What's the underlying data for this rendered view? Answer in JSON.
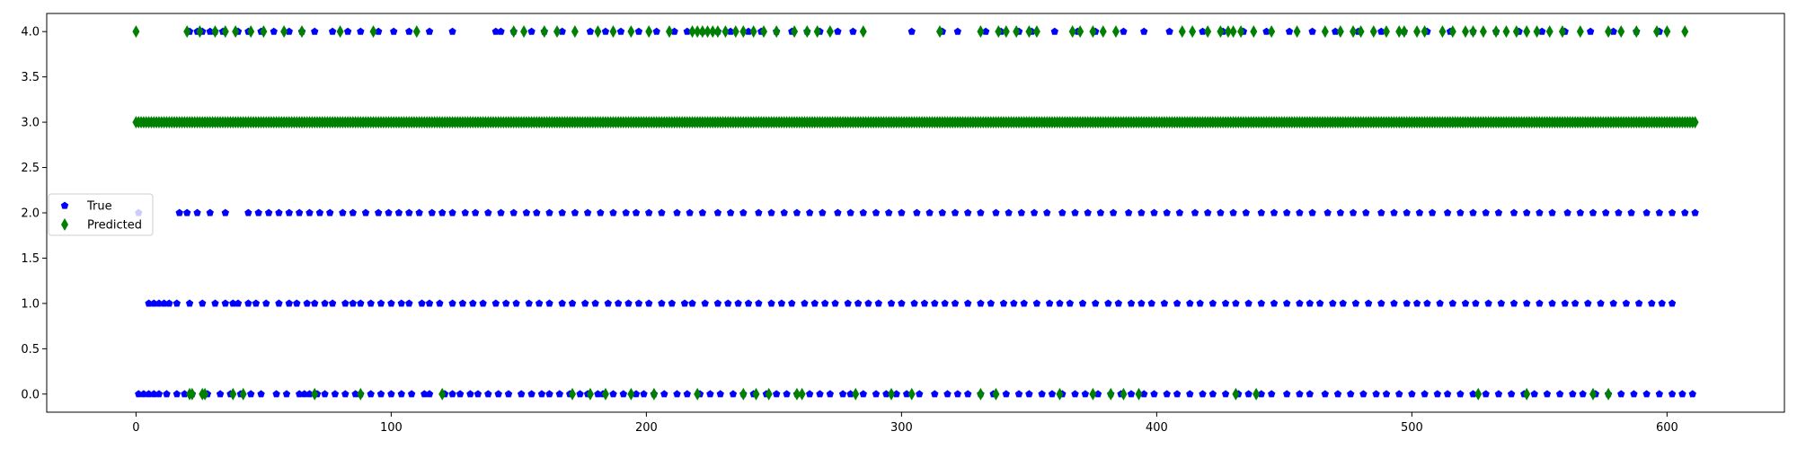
{
  "chart_data": {
    "type": "scatter",
    "xlim": [
      -35,
      646
    ],
    "ylim": [
      -0.2,
      4.2
    ],
    "xticks": [
      0,
      100,
      200,
      300,
      400,
      500,
      600
    ],
    "yticks": [
      0.0,
      0.5,
      1.0,
      1.5,
      2.0,
      2.5,
      3.0,
      3.5,
      4.0
    ],
    "xtick_labels": [
      "0",
      "100",
      "200",
      "300",
      "400",
      "500",
      "600"
    ],
    "ytick_labels": [
      "0.0",
      "0.5",
      "1.0",
      "1.5",
      "2.0",
      "2.5",
      "3.0",
      "3.5",
      "4.0"
    ],
    "grid": false,
    "legend": {
      "placement": "center-left"
    },
    "series": [
      {
        "name": "True",
        "color": "#0000ff",
        "marker": "pentagon",
        "points": {
          "0": [
            1,
            3,
            5,
            7,
            9,
            12,
            16,
            19,
            22,
            28,
            33,
            37,
            41,
            45,
            49,
            55,
            59,
            64,
            66,
            68,
            71,
            74,
            78,
            82,
            86,
            88,
            92,
            96,
            100,
            104,
            108,
            113,
            115,
            121,
            124,
            127,
            131,
            134,
            138,
            142,
            146,
            151,
            155,
            159,
            162,
            166,
            170,
            174,
            177,
            181,
            183,
            187,
            191,
            196,
            199,
            203,
            207,
            212,
            216,
            221,
            225,
            229,
            234,
            238,
            242,
            247,
            251,
            255,
            259,
            264,
            268,
            272,
            277,
            280,
            285,
            290,
            294,
            298,
            302,
            307,
            313,
            318,
            322,
            326,
            331,
            336,
            341,
            346,
            350,
            355,
            359,
            363,
            368,
            372,
            377,
            382,
            386,
            390,
            395,
            399,
            404,
            408,
            413,
            418,
            422,
            427,
            432,
            436,
            441,
            445,
            451,
            456,
            460,
            466,
            471,
            476,
            481,
            486,
            490,
            495,
            500,
            505,
            510,
            514,
            519,
            524,
            529,
            534,
            539,
            544,
            548,
            553,
            558,
            563,
            567,
            572,
            577,
            582,
            587,
            592,
            597,
            602,
            606,
            610
          ],
          "1": [
            5,
            7,
            9,
            11,
            13,
            16,
            21,
            26,
            31,
            35,
            38,
            40,
            44,
            47,
            51,
            56,
            60,
            63,
            67,
            70,
            74,
            77,
            82,
            85,
            88,
            92,
            96,
            100,
            104,
            107,
            112,
            115,
            119,
            124,
            128,
            132,
            136,
            141,
            145,
            149,
            154,
            158,
            162,
            167,
            171,
            176,
            180,
            185,
            189,
            193,
            197,
            201,
            206,
            210,
            215,
            218,
            223,
            228,
            232,
            236,
            240,
            244,
            249,
            253,
            257,
            262,
            266,
            270,
            274,
            279,
            283,
            287,
            291,
            296,
            300,
            305,
            309,
            313,
            317,
            321,
            326,
            331,
            335,
            340,
            344,
            348,
            353,
            358,
            362,
            366,
            371,
            376,
            381,
            385,
            390,
            394,
            398,
            403,
            408,
            413,
            417,
            422,
            427,
            431,
            436,
            441,
            446,
            451,
            456,
            460,
            464,
            469,
            473,
            478,
            483,
            488,
            493,
            498,
            502,
            506,
            511,
            516,
            521,
            525,
            530,
            535,
            540,
            545,
            550,
            555,
            560,
            564,
            569,
            574,
            579,
            584,
            589,
            594,
            598,
            602
          ],
          "2": [
            1,
            17,
            20,
            24,
            29,
            35,
            44,
            48,
            52,
            56,
            60,
            64,
            68,
            72,
            76,
            81,
            85,
            90,
            95,
            99,
            103,
            107,
            111,
            116,
            120,
            124,
            129,
            133,
            138,
            143,
            148,
            153,
            157,
            162,
            167,
            172,
            177,
            182,
            187,
            192,
            196,
            201,
            206,
            212,
            217,
            222,
            228,
            233,
            238,
            244,
            249,
            254,
            259,
            264,
            269,
            275,
            280,
            285,
            290,
            295,
            300,
            306,
            311,
            316,
            321,
            326,
            331,
            337,
            342,
            347,
            352,
            357,
            363,
            368,
            373,
            378,
            383,
            389,
            394,
            399,
            404,
            409,
            415,
            420,
            425,
            430,
            435,
            441,
            446,
            451,
            456,
            461,
            467,
            472,
            477,
            482,
            488,
            493,
            498,
            503,
            508,
            514,
            519,
            524,
            529,
            534,
            540,
            545,
            550,
            555,
            561,
            566,
            571,
            576,
            581,
            586,
            592,
            597,
            602,
            607,
            611
          ],
          "4": [
            21,
            24,
            26,
            29,
            31,
            34,
            40,
            44,
            49,
            54,
            60,
            65,
            70,
            77,
            83,
            88,
            95,
            101,
            107,
            115,
            124,
            141,
            143,
            148,
            155,
            160,
            167,
            178,
            184,
            190,
            197,
            204,
            211,
            216,
            222,
            228,
            233,
            240,
            245,
            251,
            257,
            263,
            268,
            275,
            281,
            304,
            316,
            322,
            333,
            339,
            346,
            351,
            360,
            369,
            376,
            387,
            395,
            405,
            418,
            426,
            434,
            443,
            452,
            461,
            470,
            479,
            488,
            497,
            506,
            515,
            524,
            533,
            542,
            551,
            560,
            570,
            579,
            588,
            597
          ]
        }
      },
      {
        "name": "Predicted",
        "color": "#008000",
        "marker": "thin_diamond",
        "points": {
          "0": [
            21,
            22,
            26,
            27,
            38,
            42,
            70,
            88,
            120,
            171,
            178,
            184,
            194,
            203,
            220,
            238,
            243,
            248,
            259,
            261,
            282,
            296,
            304,
            331,
            337,
            362,
            375,
            382,
            387,
            393,
            431,
            439,
            526,
            545,
            571,
            577
          ],
          "4": [
            0,
            20,
            25,
            31,
            35,
            39,
            45,
            50,
            58,
            65,
            80,
            93,
            110,
            148,
            152,
            160,
            165,
            172,
            181,
            187,
            194,
            201,
            209,
            218,
            220,
            222,
            224,
            226,
            228,
            231,
            235,
            238,
            242,
            246,
            251,
            258,
            263,
            267,
            272,
            285,
            315,
            331,
            338,
            341,
            345,
            350,
            353,
            367,
            370,
            375,
            379,
            384,
            410,
            414,
            420,
            425,
            428,
            430,
            433,
            438,
            445,
            455,
            466,
            472,
            477,
            480,
            485,
            490,
            495,
            497,
            502,
            505,
            512,
            516,
            521,
            524,
            528,
            533,
            537,
            541,
            545,
            549,
            554,
            559,
            566,
            577,
            582,
            588,
            596,
            600,
            607
          ],
          "3": "dense_0_611"
        }
      }
    ]
  }
}
